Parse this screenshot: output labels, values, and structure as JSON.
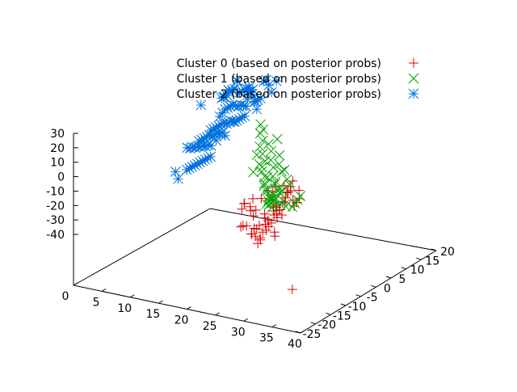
{
  "chart_data": {
    "type": "scatter",
    "title": "",
    "legend_position": "top-right",
    "grid": false,
    "axes": {
      "x": {
        "ticks": [
          "0",
          "5",
          "10",
          "15",
          "20",
          "25",
          "30",
          "35",
          "40"
        ],
        "range": [
          0,
          40
        ]
      },
      "y": {
        "ticks": [
          "-25",
          "-20",
          "-15",
          "-10",
          "-5",
          "0",
          "5",
          "10",
          "15",
          "20"
        ],
        "range": [
          -25,
          20
        ]
      },
      "z": {
        "ticks": [
          "-40",
          "-30",
          "-20",
          "-10",
          "0",
          "10",
          "20",
          "30"
        ],
        "range": [
          -40,
          30
        ]
      }
    },
    "series": [
      {
        "name": "Cluster 0 (based on posterior probs)",
        "color": "#dd0000",
        "marker": "plus",
        "points": [
          [
            28,
            16,
            10
          ],
          [
            29,
            15,
            4
          ],
          [
            30,
            16,
            8
          ],
          [
            31,
            15,
            6
          ],
          [
            32,
            14,
            9
          ],
          [
            33,
            13,
            5
          ],
          [
            34,
            14,
            12
          ],
          [
            30,
            13,
            2
          ],
          [
            31,
            12,
            5
          ],
          [
            32,
            13,
            8
          ],
          [
            33,
            15,
            11
          ],
          [
            29,
            13,
            -2
          ],
          [
            30,
            12,
            0
          ],
          [
            31,
            11,
            3
          ],
          [
            32,
            12,
            6
          ],
          [
            28,
            12,
            -5
          ],
          [
            29,
            11,
            -3
          ],
          [
            30,
            10,
            1
          ],
          [
            31,
            10,
            4
          ],
          [
            27,
            11,
            -6
          ],
          [
            28,
            10,
            -8
          ],
          [
            29,
            9,
            -4
          ],
          [
            30,
            9,
            -1
          ],
          [
            26,
            10,
            -10
          ],
          [
            27,
            9,
            -12
          ],
          [
            28,
            8,
            -7
          ],
          [
            29,
            8,
            -9
          ],
          [
            31,
            9,
            7
          ],
          [
            32,
            10,
            10
          ],
          [
            33,
            11,
            14
          ],
          [
            34,
            12,
            16
          ],
          [
            35,
            14,
            20
          ],
          [
            36,
            13,
            18
          ],
          [
            35,
            16,
            22
          ],
          [
            36,
            15,
            15
          ],
          [
            37,
            17,
            26
          ],
          [
            36,
            17,
            20
          ],
          [
            33,
            16,
            18
          ],
          [
            34,
            17,
            22
          ],
          [
            32,
            15,
            13
          ],
          [
            25,
            8,
            -12
          ],
          [
            26,
            7,
            -15
          ],
          [
            27,
            7,
            -10
          ],
          [
            28,
            6,
            -13
          ],
          [
            24,
            9,
            -8
          ],
          [
            25,
            6,
            -18
          ],
          [
            24,
            5,
            -16
          ],
          [
            23,
            6,
            -11
          ],
          [
            22,
            6,
            -12
          ],
          [
            30,
            4,
            -38
          ],
          [
            28,
            14,
            5
          ],
          [
            29,
            16,
            9
          ],
          [
            33,
            9,
            6
          ],
          [
            34,
            10,
            9
          ],
          [
            35,
            11,
            12
          ],
          [
            31,
            14,
            16
          ],
          [
            30,
            17,
            14
          ],
          [
            27,
            15,
            6
          ],
          [
            29,
            18,
            12
          ],
          [
            32,
            18,
            16
          ]
        ]
      },
      {
        "name": "Cluster 1 (based on posterior probs)",
        "color": "#00a000",
        "marker": "cross",
        "points": [
          [
            21,
            -2,
            10
          ],
          [
            21,
            -3,
            14
          ],
          [
            20,
            -4,
            16
          ],
          [
            20,
            -5,
            18
          ],
          [
            19,
            -6,
            20
          ],
          [
            19,
            -7,
            21
          ],
          [
            18,
            -8,
            22
          ],
          [
            22,
            -1,
            10
          ],
          [
            22,
            -2,
            12
          ],
          [
            21,
            0,
            8
          ],
          [
            23,
            0,
            7
          ],
          [
            23,
            1,
            10
          ],
          [
            24,
            2,
            6
          ],
          [
            24,
            1,
            8
          ],
          [
            25,
            3,
            5
          ],
          [
            25,
            4,
            7
          ],
          [
            26,
            4,
            3
          ],
          [
            26,
            5,
            6
          ],
          [
            27,
            6,
            4
          ],
          [
            27,
            7,
            2
          ],
          [
            28,
            7,
            1
          ],
          [
            28,
            8,
            3
          ],
          [
            29,
            9,
            5
          ],
          [
            29,
            10,
            7
          ],
          [
            30,
            10,
            8
          ],
          [
            30,
            11,
            9
          ],
          [
            31,
            12,
            10
          ],
          [
            31,
            13,
            11
          ],
          [
            32,
            13,
            12
          ],
          [
            32,
            14,
            13
          ],
          [
            20,
            -3,
            13
          ],
          [
            22,
            -4,
            15
          ],
          [
            23,
            -2,
            13
          ],
          [
            24,
            -1,
            11
          ],
          [
            25,
            1,
            9
          ],
          [
            26,
            2,
            8
          ],
          [
            27,
            3,
            6
          ],
          [
            27,
            4,
            9
          ],
          [
            28,
            5,
            7
          ],
          [
            29,
            6,
            2
          ],
          [
            30,
            7,
            5
          ],
          [
            31,
            8,
            4
          ],
          [
            31,
            10,
            12
          ],
          [
            32,
            11,
            14
          ],
          [
            21,
            -5,
            17
          ],
          [
            22,
            -6,
            19
          ],
          [
            24,
            -3,
            15
          ],
          [
            25,
            -1,
            13
          ],
          [
            26,
            0,
            11
          ],
          [
            28,
            2,
            10
          ],
          [
            29,
            3,
            9
          ],
          [
            30,
            4,
            0
          ],
          [
            31,
            5,
            3
          ],
          [
            32,
            6,
            6
          ],
          [
            33,
            7,
            9
          ],
          [
            27,
            1,
            13
          ]
        ]
      },
      {
        "name": "Cluster 2 (based on posterior probs)",
        "color": "#0070dd",
        "marker": "star",
        "points": [
          [
            0,
            -22,
            10
          ],
          [
            5,
            -20,
            18
          ],
          [
            7,
            -18,
            24
          ],
          [
            8,
            -19,
            28
          ],
          [
            9,
            -17,
            30
          ],
          [
            10,
            -16,
            26
          ],
          [
            11,
            -15,
            28
          ],
          [
            12,
            -14,
            30
          ],
          [
            13,
            -13,
            27
          ],
          [
            14,
            -12,
            32
          ],
          [
            15,
            -11,
            34
          ],
          [
            16,
            -10,
            30
          ],
          [
            17,
            -9,
            32
          ],
          [
            18,
            -8,
            34
          ],
          [
            6,
            -17,
            12
          ],
          [
            7,
            -16,
            15
          ],
          [
            8,
            -15,
            18
          ],
          [
            9,
            -14,
            20
          ],
          [
            10,
            -13,
            22
          ],
          [
            11,
            -12,
            24
          ],
          [
            12,
            -11,
            25
          ],
          [
            13,
            -10,
            26
          ],
          [
            14,
            -9,
            28
          ],
          [
            15,
            -8,
            29
          ],
          [
            16,
            -7,
            30
          ],
          [
            6,
            -14,
            8
          ],
          [
            7,
            -13,
            10
          ],
          [
            8,
            -12,
            12
          ],
          [
            9,
            -11,
            14
          ],
          [
            10,
            -10,
            16
          ],
          [
            11,
            -9,
            18
          ],
          [
            12,
            -8,
            19
          ],
          [
            13,
            -7,
            21
          ],
          [
            14,
            -6,
            23
          ],
          [
            15,
            -5,
            24
          ],
          [
            5,
            -12,
            4
          ],
          [
            6,
            -11,
            6
          ],
          [
            7,
            -10,
            8
          ],
          [
            8,
            -9,
            10
          ],
          [
            9,
            -8,
            12
          ],
          [
            10,
            -7,
            13
          ],
          [
            11,
            -6,
            15
          ],
          [
            12,
            -5,
            17
          ],
          [
            13,
            -4,
            18
          ],
          [
            14,
            -3,
            20
          ],
          [
            4,
            -10,
            2
          ],
          [
            5,
            -9,
            3
          ],
          [
            6,
            -8,
            5
          ],
          [
            7,
            -7,
            6
          ],
          [
            8,
            -6,
            8
          ],
          [
            9,
            -5,
            9
          ],
          [
            10,
            -4,
            11
          ],
          [
            11,
            -3,
            12
          ],
          [
            12,
            -2,
            14
          ],
          [
            13,
            -1,
            15
          ],
          [
            15,
            -9,
            36
          ],
          [
            16,
            -8,
            38
          ],
          [
            17,
            -6,
            40
          ],
          [
            18,
            -5,
            38
          ],
          [
            19,
            -4,
            36
          ],
          [
            20,
            -3,
            34
          ],
          [
            18,
            -9,
            41
          ],
          [
            19,
            -8,
            43
          ],
          [
            20,
            -7,
            42
          ],
          [
            21,
            -6,
            40
          ],
          [
            24,
            -2,
            50
          ],
          [
            9,
            -12,
            26
          ],
          [
            10,
            -11,
            28
          ],
          [
            11,
            -10,
            30
          ],
          [
            12,
            -9,
            33
          ],
          [
            13,
            -8,
            35
          ],
          [
            14,
            -7,
            37
          ],
          [
            5,
            -8,
            -6
          ],
          [
            6,
            -7,
            -4
          ],
          [
            7,
            -6,
            -2
          ],
          [
            8,
            -5,
            0
          ],
          [
            9,
            -4,
            2
          ],
          [
            10,
            -3,
            4
          ],
          [
            11,
            -2,
            6
          ],
          [
            12,
            -1,
            8
          ],
          [
            13,
            0,
            10
          ],
          [
            14,
            1,
            12
          ],
          [
            16,
            -3,
            26
          ],
          [
            17,
            -2,
            28
          ],
          [
            18,
            -1,
            30
          ],
          [
            19,
            0,
            32
          ],
          [
            20,
            1,
            34
          ],
          [
            4,
            -7,
            -10
          ],
          [
            3,
            -8,
            -8
          ],
          [
            16,
            0,
            22
          ],
          [
            15,
            1,
            20
          ]
        ]
      }
    ]
  }
}
